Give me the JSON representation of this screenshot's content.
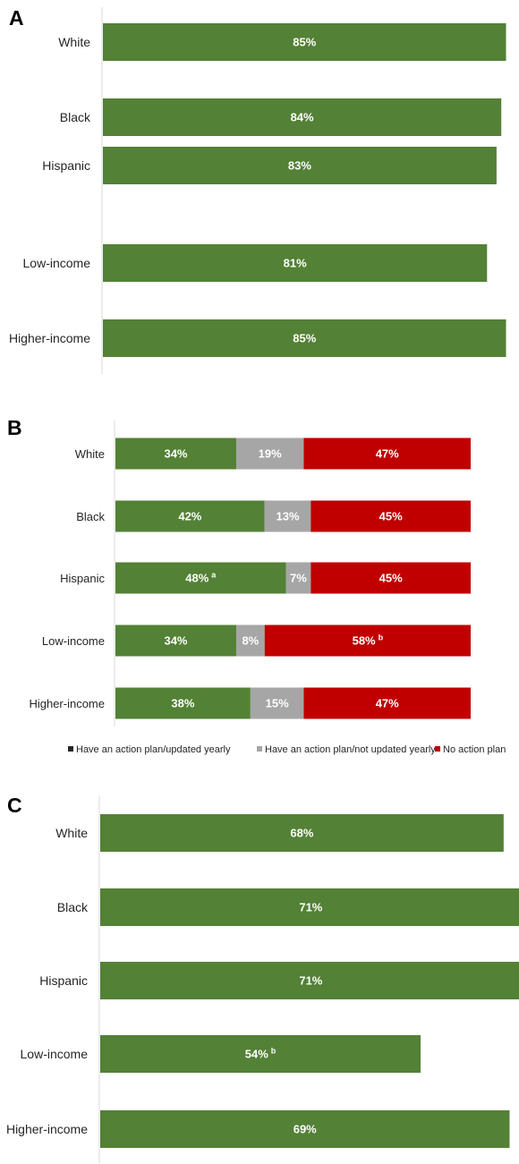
{
  "chart_data": [
    {
      "panel": "A",
      "type": "bar",
      "orientation": "horizontal",
      "categories": [
        "White",
        "Black",
        "Hispanic",
        "Low-income",
        "Higher-income"
      ],
      "values": [
        85,
        84,
        83,
        81,
        85
      ],
      "labels": [
        "85%",
        "84%",
        "83%",
        "81%",
        "85%"
      ],
      "superscripts": [
        "",
        "",
        "",
        "",
        ""
      ],
      "color": "#538135"
    },
    {
      "panel": "B",
      "type": "bar",
      "orientation": "horizontal",
      "stacked": true,
      "categories": [
        "White",
        "Black",
        "Hispanic",
        "Low-income",
        "Higher-income"
      ],
      "series": [
        {
          "name": "Have an action plan/updated yearly",
          "color": "#538135",
          "values": [
            34,
            42,
            48,
            34,
            38
          ],
          "labels": [
            "34%",
            "42%",
            "48%",
            "34%",
            "38%"
          ],
          "superscripts": [
            "",
            "",
            "a",
            "",
            ""
          ]
        },
        {
          "name": "Have an action plan/not updated yearly",
          "color": "#a6a6a6",
          "values": [
            19,
            13,
            7,
            8,
            15
          ],
          "labels": [
            "19%",
            "13%",
            "7%",
            "8%",
            "15%"
          ],
          "superscripts": [
            "",
            "",
            "",
            "",
            ""
          ]
        },
        {
          "name": "No action plan",
          "color": "#c00000",
          "values": [
            47,
            45,
            45,
            58,
            47
          ],
          "labels": [
            "47%",
            "45%",
            "45%",
            "58%",
            "47%"
          ],
          "superscripts": [
            "",
            "",
            "",
            "b",
            ""
          ]
        }
      ],
      "legend": {
        "position": "bottom",
        "entries": [
          {
            "label": "Have an action plan/updated yearly",
            "swatch_color": "#262626"
          },
          {
            "label": "Have an action plan/not updated yearly",
            "swatch_color": "#a6a6a6"
          },
          {
            "label": "No action plan",
            "swatch_color": "#c00000"
          }
        ]
      }
    },
    {
      "panel": "C",
      "type": "bar",
      "orientation": "horizontal",
      "categories": [
        "White",
        "Black",
        "Hispanic",
        "Low-income",
        "Higher-income"
      ],
      "values": [
        68,
        71,
        71,
        54,
        69
      ],
      "labels": [
        "68%",
        "71%",
        "71%",
        "54%",
        "69%"
      ],
      "superscripts": [
        "",
        "",
        "",
        "b",
        ""
      ],
      "color": "#538135"
    }
  ]
}
